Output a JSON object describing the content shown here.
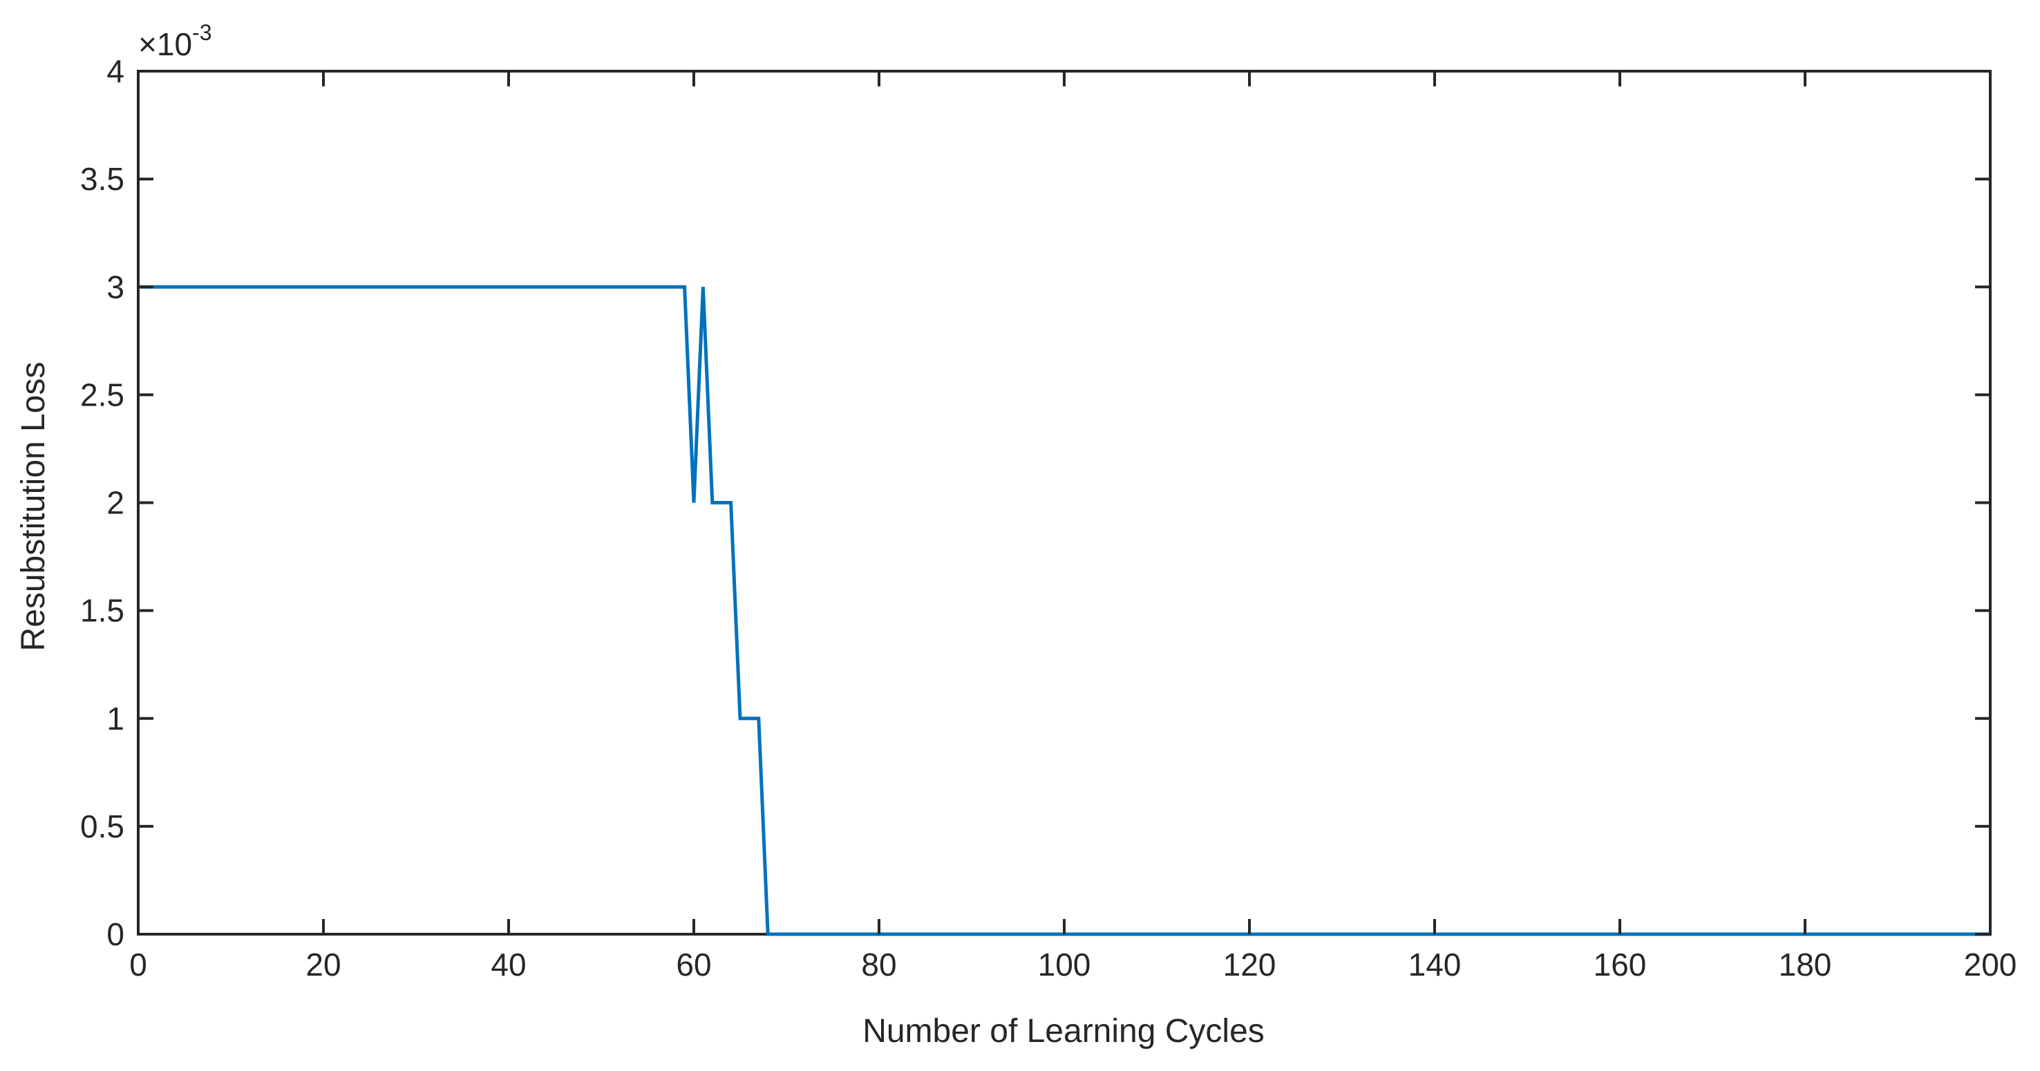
{
  "chart_data": {
    "type": "line",
    "title": "",
    "xlabel": "Number of Learning Cycles",
    "ylabel": "Resubstitution Loss",
    "xlim": [
      0,
      200
    ],
    "ylim": [
      0,
      0.004
    ],
    "y_exponent": {
      "base": "×10",
      "power": "-3"
    },
    "xticks": [
      0,
      20,
      40,
      60,
      80,
      100,
      120,
      140,
      160,
      180,
      200
    ],
    "yticks": [
      0,
      0.0005,
      0.001,
      0.0015,
      0.002,
      0.0025,
      0.003,
      0.0035,
      0.004
    ],
    "xtick_labels": [
      "0",
      "20",
      "40",
      "60",
      "80",
      "100",
      "120",
      "140",
      "160",
      "180",
      "200"
    ],
    "ytick_labels": [
      "0",
      "0.5",
      "1",
      "1.5",
      "2",
      "2.5",
      "3",
      "3.5",
      "4"
    ],
    "grid": false,
    "box": true,
    "series": [
      {
        "color": "#0072BD",
        "x": [
          0,
          59,
          60,
          61,
          62,
          64,
          65,
          67,
          68,
          200
        ],
        "y": [
          0.003,
          0.003,
          0.002,
          0.003,
          0.002,
          0.002,
          0.001,
          0.001,
          0,
          0
        ]
      }
    ]
  }
}
